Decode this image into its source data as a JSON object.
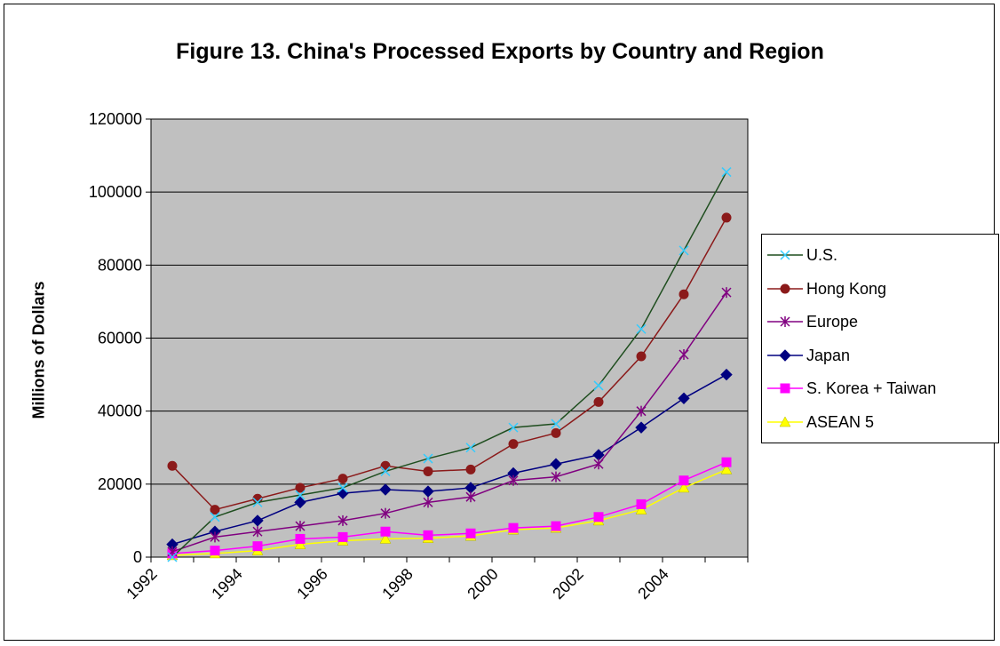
{
  "chart_data": {
    "type": "line",
    "title": "Figure 13.  China's Processed Exports by Country and Region",
    "ylabel": "Millions of Dollars",
    "xlabel": "",
    "x": [
      1992,
      1993,
      1994,
      1995,
      1996,
      1997,
      1998,
      1999,
      2000,
      2001,
      2002,
      2003,
      2004,
      2005
    ],
    "x_tick_labels": [
      "1992",
      "1994",
      "1996",
      "1998",
      "2000",
      "2002",
      "2004"
    ],
    "y_ticks": [
      "0",
      "20000",
      "40000",
      "60000",
      "80000",
      "100000",
      "120000"
    ],
    "ylim": [
      0,
      120000
    ],
    "grid": "horizontal",
    "legend_position": "right",
    "plot_background": "#c0c0c0",
    "series": [
      {
        "name": "U.S.",
        "color": "#1f4e1f",
        "marker": "x",
        "marker_color": "#33ccff",
        "values": [
          0,
          11000,
          15000,
          17000,
          19000,
          23500,
          27000,
          30000,
          35500,
          36500,
          47000,
          62500,
          84000,
          105500
        ]
      },
      {
        "name": "Hong Kong",
        "color": "#8b1a1a",
        "marker": "circle",
        "marker_color": "#8b1a1a",
        "values": [
          25000,
          13000,
          16000,
          19000,
          21500,
          25000,
          23500,
          24000,
          31000,
          34000,
          42500,
          55000,
          72000,
          93000
        ]
      },
      {
        "name": "Europe",
        "color": "#800080",
        "marker": "asterisk",
        "marker_color": "#800080",
        "values": [
          1500,
          5500,
          7000,
          8500,
          10000,
          12000,
          15000,
          16500,
          21000,
          22000,
          25500,
          40000,
          55500,
          72500
        ]
      },
      {
        "name": "Japan",
        "color": "#000080",
        "marker": "diamond",
        "marker_color": "#000080",
        "values": [
          3500,
          7000,
          10000,
          15000,
          17500,
          18500,
          18000,
          19000,
          23000,
          25500,
          28000,
          35500,
          43500,
          50000
        ]
      },
      {
        "name": "S. Korea + Taiwan",
        "color": "#ff00ff",
        "marker": "square",
        "marker_color": "#ff00ff",
        "values": [
          1000,
          1800,
          3000,
          5000,
          5500,
          7000,
          6000,
          6500,
          8000,
          8500,
          11000,
          14500,
          21000,
          26000
        ]
      },
      {
        "name": "ASEAN 5",
        "color": "#ffff00",
        "marker": "triangle",
        "marker_color": "#ffff00",
        "values": [
          500,
          1000,
          1800,
          3500,
          4500,
          5000,
          5200,
          5800,
          7500,
          8000,
          10000,
          13000,
          19000,
          24000
        ]
      }
    ]
  }
}
